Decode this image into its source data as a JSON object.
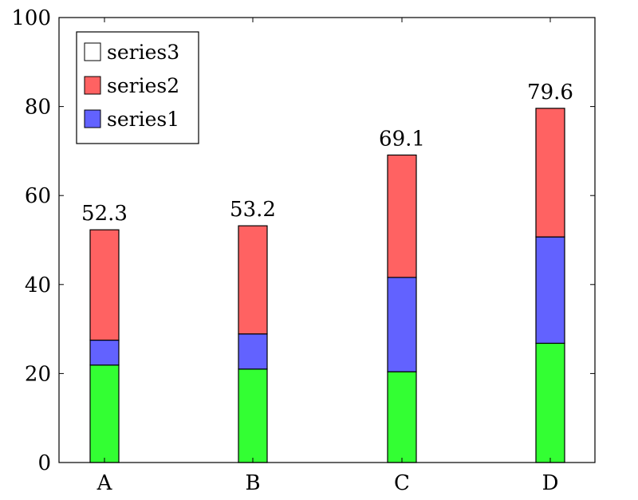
{
  "chart_data": {
    "type": "bar",
    "stacked": true,
    "categories": [
      "A",
      "B",
      "C",
      "D"
    ],
    "series": [
      {
        "name": "",
        "color": "#33ff33",
        "values": [
          21.9,
          21.0,
          20.4,
          26.8
        ]
      },
      {
        "name": "series1",
        "color": "#6262ff",
        "values": [
          5.6,
          7.9,
          21.2,
          23.9
        ]
      },
      {
        "name": "series2",
        "color": "#ff6262",
        "values": [
          24.8,
          24.3,
          27.5,
          28.9
        ]
      },
      {
        "name": "series3",
        "color": "#ffffff",
        "values": [
          0,
          0,
          0,
          0
        ]
      }
    ],
    "totals": [
      "52.3",
      "53.2",
      "69.1",
      "79.6"
    ],
    "title": "",
    "xlabel": "",
    "ylabel": "",
    "ylim": [
      0,
      100
    ],
    "yticks": [
      "0",
      "20",
      "40",
      "60",
      "80",
      "100"
    ],
    "grid": false,
    "legend": {
      "position": "top-left",
      "entries": [
        {
          "label": "series3",
          "color": "#ffffff"
        },
        {
          "label": "series2",
          "color": "#ff6262"
        },
        {
          "label": "series1",
          "color": "#6262ff"
        }
      ]
    }
  }
}
